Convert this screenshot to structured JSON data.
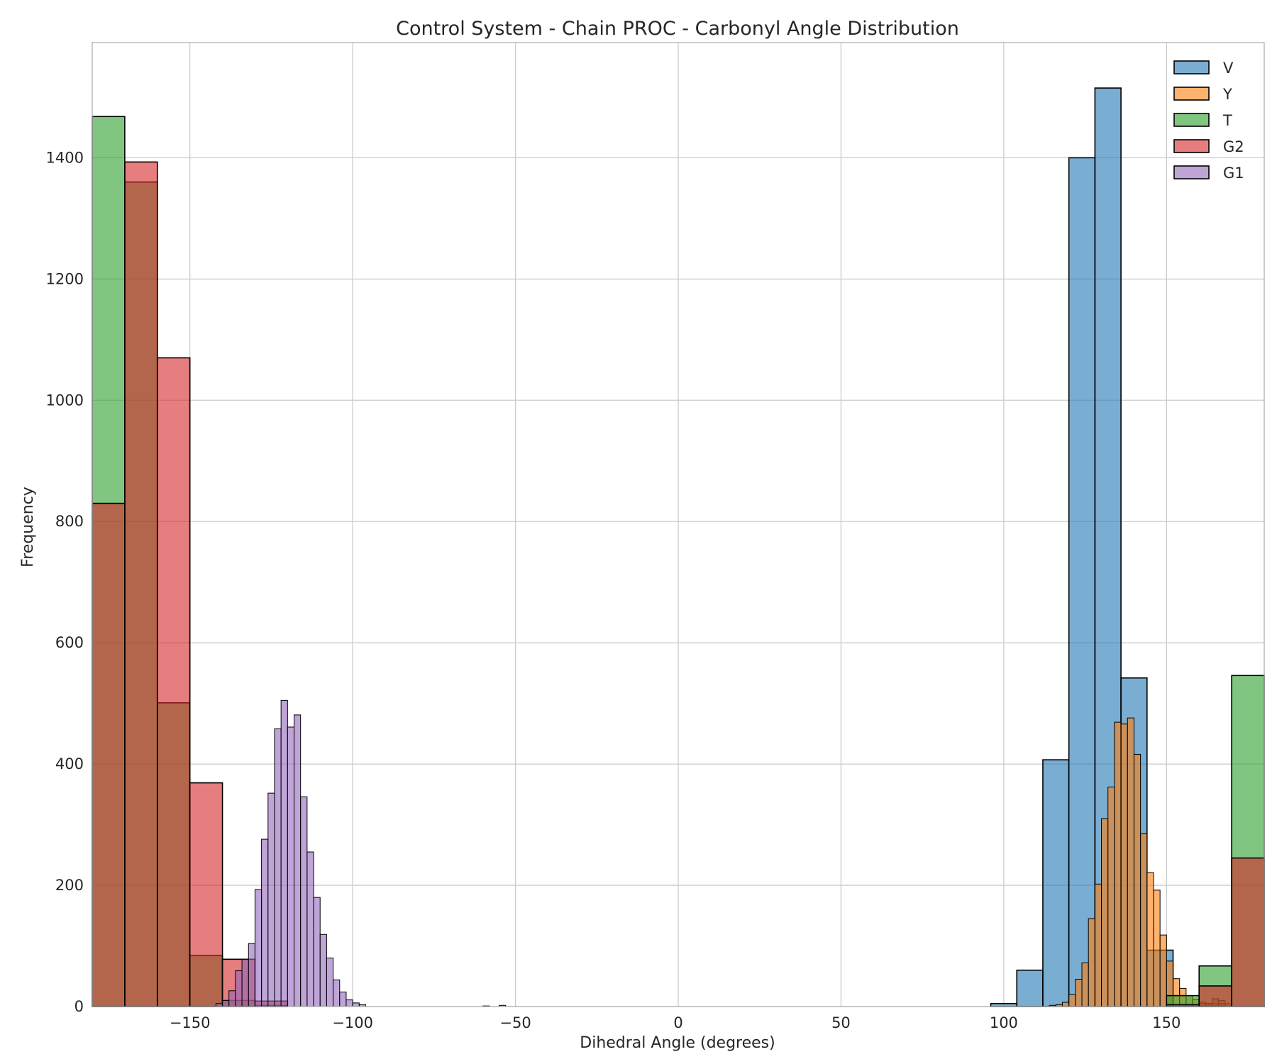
{
  "chart_data": {
    "type": "histogram",
    "title": "Control System - Chain PROC - Carbonyl Angle Distribution",
    "xlabel": "Dihedral Angle (degrees)",
    "ylabel": "Frequency",
    "xlim": [
      -180,
      180
    ],
    "ylim": [
      0,
      1590
    ],
    "xticks": [
      -150,
      -100,
      -50,
      0,
      50,
      100,
      150
    ],
    "xtick_labels": [
      "−150",
      "−100",
      "−50",
      "0",
      "50",
      "100",
      "150"
    ],
    "yticks": [
      0,
      200,
      400,
      600,
      800,
      1000,
      1200,
      1400
    ],
    "ytick_labels": [
      "0",
      "200",
      "400",
      "600",
      "800",
      "1000",
      "1200",
      "1400"
    ],
    "grid": true,
    "legend_position": "top-right",
    "series": [
      {
        "name": "V",
        "color": "#1f77b4",
        "opacity": 0.6,
        "bins": [
          {
            "x0": 96,
            "x1": 104,
            "count": 5
          },
          {
            "x0": 104,
            "x1": 112,
            "count": 60
          },
          {
            "x0": 112,
            "x1": 120,
            "count": 407
          },
          {
            "x0": 120,
            "x1": 128,
            "count": 1400
          },
          {
            "x0": 128,
            "x1": 136,
            "count": 1515
          },
          {
            "x0": 136,
            "x1": 144,
            "count": 542
          },
          {
            "x0": 144,
            "x1": 152,
            "count": 93
          },
          {
            "x0": 152,
            "x1": 160,
            "count": 0
          },
          {
            "x0": 160,
            "x1": 168,
            "count": 5
          }
        ]
      },
      {
        "name": "Y",
        "color": "#ff7f0e",
        "opacity": 0.6,
        "bins": [
          {
            "x0": 114,
            "x1": 116,
            "count": 2
          },
          {
            "x0": 116,
            "x1": 118,
            "count": 3
          },
          {
            "x0": 118,
            "x1": 120,
            "count": 7
          },
          {
            "x0": 120,
            "x1": 122,
            "count": 20
          },
          {
            "x0": 122,
            "x1": 124,
            "count": 45
          },
          {
            "x0": 124,
            "x1": 126,
            "count": 72
          },
          {
            "x0": 126,
            "x1": 128,
            "count": 145
          },
          {
            "x0": 128,
            "x1": 130,
            "count": 202
          },
          {
            "x0": 130,
            "x1": 132,
            "count": 310
          },
          {
            "x0": 132,
            "x1": 134,
            "count": 362
          },
          {
            "x0": 134,
            "x1": 136,
            "count": 469
          },
          {
            "x0": 136,
            "x1": 138,
            "count": 466
          },
          {
            "x0": 138,
            "x1": 140,
            "count": 476
          },
          {
            "x0": 140,
            "x1": 142,
            "count": 416
          },
          {
            "x0": 142,
            "x1": 144,
            "count": 285
          },
          {
            "x0": 144,
            "x1": 146,
            "count": 221
          },
          {
            "x0": 146,
            "x1": 148,
            "count": 192
          },
          {
            "x0": 148,
            "x1": 150,
            "count": 118
          },
          {
            "x0": 150,
            "x1": 152,
            "count": 75
          },
          {
            "x0": 152,
            "x1": 154,
            "count": 46
          },
          {
            "x0": 154,
            "x1": 156,
            "count": 30
          },
          {
            "x0": 156,
            "x1": 158,
            "count": 18
          },
          {
            "x0": 158,
            "x1": 160,
            "count": 12
          },
          {
            "x0": 160,
            "x1": 162,
            "count": 7
          },
          {
            "x0": 162,
            "x1": 164,
            "count": 5
          },
          {
            "x0": 164,
            "x1": 166,
            "count": 13
          },
          {
            "x0": 166,
            "x1": 168,
            "count": 10
          },
          {
            "x0": 168,
            "x1": 170,
            "count": 5
          }
        ]
      },
      {
        "name": "T",
        "color": "#2ca02c",
        "opacity": 0.6,
        "bins": [
          {
            "x0": -180,
            "x1": -170,
            "count": 1468
          },
          {
            "x0": -170,
            "x1": -160,
            "count": 1360
          },
          {
            "x0": -160,
            "x1": -150,
            "count": 501
          },
          {
            "x0": -150,
            "x1": -140,
            "count": 84
          },
          {
            "x0": -140,
            "x1": -130,
            "count": 10
          },
          {
            "x0": -130,
            "x1": -120,
            "count": 2
          },
          {
            "x0": 150,
            "x1": 160,
            "count": 18
          },
          {
            "x0": 160,
            "x1": 170,
            "count": 67
          },
          {
            "x0": 170,
            "x1": 180,
            "count": 546
          }
        ]
      },
      {
        "name": "G2",
        "color": "#d62728",
        "opacity": 0.6,
        "bins": [
          {
            "x0": -180,
            "x1": -170,
            "count": 830
          },
          {
            "x0": -170,
            "x1": -160,
            "count": 1393
          },
          {
            "x0": -160,
            "x1": -150,
            "count": 1070
          },
          {
            "x0": -150,
            "x1": -140,
            "count": 369
          },
          {
            "x0": -140,
            "x1": -130,
            "count": 78
          },
          {
            "x0": -130,
            "x1": -120,
            "count": 9
          },
          {
            "x0": 150,
            "x1": 160,
            "count": 3
          },
          {
            "x0": 160,
            "x1": 170,
            "count": 34
          },
          {
            "x0": 170,
            "x1": 180,
            "count": 245
          }
        ]
      },
      {
        "name": "G1",
        "color": "#9467bd",
        "opacity": 0.6,
        "bins": [
          {
            "x0": -142,
            "x1": -140,
            "count": 5
          },
          {
            "x0": -140,
            "x1": -138,
            "count": 10
          },
          {
            "x0": -138,
            "x1": -136,
            "count": 26
          },
          {
            "x0": -136,
            "x1": -134,
            "count": 59
          },
          {
            "x0": -134,
            "x1": -132,
            "count": 78
          },
          {
            "x0": -132,
            "x1": -130,
            "count": 104
          },
          {
            "x0": -130,
            "x1": -128,
            "count": 193
          },
          {
            "x0": -128,
            "x1": -126,
            "count": 276
          },
          {
            "x0": -126,
            "x1": -124,
            "count": 352
          },
          {
            "x0": -124,
            "x1": -122,
            "count": 458
          },
          {
            "x0": -122,
            "x1": -120,
            "count": 505
          },
          {
            "x0": -120,
            "x1": -118,
            "count": 461
          },
          {
            "x0": -118,
            "x1": -116,
            "count": 481
          },
          {
            "x0": -116,
            "x1": -114,
            "count": 346
          },
          {
            "x0": -114,
            "x1": -112,
            "count": 255
          },
          {
            "x0": -112,
            "x1": -110,
            "count": 180
          },
          {
            "x0": -110,
            "x1": -108,
            "count": 119
          },
          {
            "x0": -108,
            "x1": -106,
            "count": 80
          },
          {
            "x0": -106,
            "x1": -104,
            "count": 44
          },
          {
            "x0": -104,
            "x1": -102,
            "count": 24
          },
          {
            "x0": -102,
            "x1": -100,
            "count": 11
          },
          {
            "x0": -100,
            "x1": -98,
            "count": 6
          },
          {
            "x0": -98,
            "x1": -96,
            "count": 3
          },
          {
            "x0": -60,
            "x1": -58,
            "count": 1
          },
          {
            "x0": -55,
            "x1": -53,
            "count": 2
          }
        ]
      }
    ]
  }
}
